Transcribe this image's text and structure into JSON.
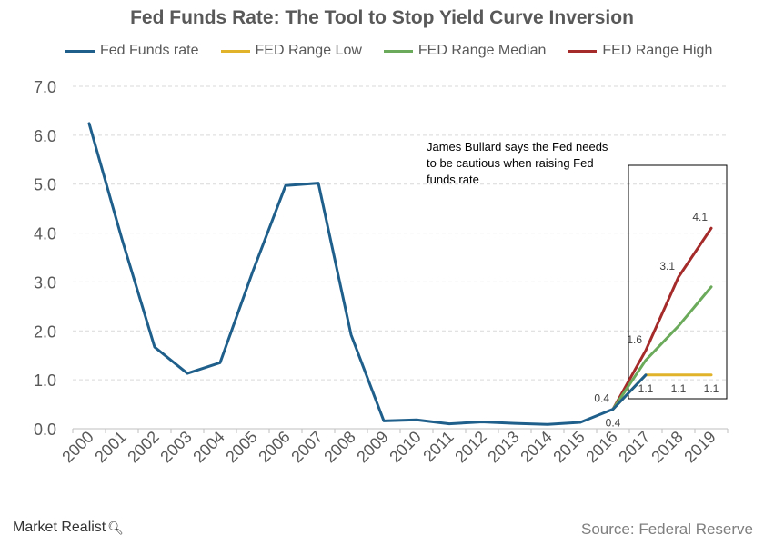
{
  "chart_data": {
    "type": "line",
    "title": "Fed Funds Rate: The Tool to Stop Yield Curve Inversion",
    "x": [
      "2000",
      "2001",
      "2002",
      "2003",
      "2004",
      "2005",
      "2006",
      "2007",
      "2008",
      "2009",
      "2010",
      "2011",
      "2012",
      "2013",
      "2014",
      "2015",
      "2016",
      "2017",
      "2018",
      "2019"
    ],
    "ylim": [
      0,
      7
    ],
    "yticks": [
      "0.0",
      "1.0",
      "2.0",
      "3.0",
      "4.0",
      "5.0",
      "6.0",
      "7.0"
    ],
    "grid": true,
    "legend_position": "top",
    "series": [
      {
        "name": "Fed Funds rate",
        "color": "#1f5f8b",
        "values": [
          6.24,
          3.88,
          1.67,
          1.13,
          1.35,
          3.22,
          4.97,
          5.02,
          1.92,
          0.16,
          0.18,
          0.1,
          0.14,
          0.11,
          0.09,
          0.13,
          0.4,
          1.1,
          null,
          null
        ]
      },
      {
        "name": "FED Range Low",
        "color": "#e0b32a",
        "values": [
          null,
          null,
          null,
          null,
          null,
          null,
          null,
          null,
          null,
          null,
          null,
          null,
          null,
          null,
          null,
          null,
          0.4,
          1.1,
          1.1,
          1.1
        ]
      },
      {
        "name": "FED Range Median",
        "color": "#6aaa5a",
        "values": [
          null,
          null,
          null,
          null,
          null,
          null,
          null,
          null,
          null,
          null,
          null,
          null,
          null,
          null,
          null,
          null,
          0.4,
          1.4,
          2.1,
          2.9
        ]
      },
      {
        "name": "FED Range High",
        "color": "#a52a2a",
        "values": [
          null,
          null,
          null,
          null,
          null,
          null,
          null,
          null,
          null,
          null,
          null,
          null,
          null,
          null,
          null,
          null,
          0.4,
          1.6,
          3.1,
          4.1
        ]
      }
    ],
    "data_labels": [
      {
        "text": "0.4",
        "year": "2016",
        "value": 0.4,
        "place": "upper-left"
      },
      {
        "text": "0.4",
        "year": "2016",
        "value": 0.4,
        "place": "below"
      },
      {
        "text": "1.6",
        "year": "2017",
        "value": 1.6,
        "place": "upper-left"
      },
      {
        "text": "3.1",
        "year": "2018",
        "value": 3.1,
        "place": "upper-left"
      },
      {
        "text": "4.1",
        "year": "2019",
        "value": 4.1,
        "place": "upper-left"
      },
      {
        "text": "1.1",
        "year": "2017",
        "value": 1.1,
        "place": "below"
      },
      {
        "text": "1.1",
        "year": "2018",
        "value": 1.1,
        "place": "below"
      },
      {
        "text": "1.1",
        "year": "2019",
        "value": 1.1,
        "place": "below"
      }
    ],
    "annotation": "James Bullard says the Fed needs to be cautious when raising Fed funds rate",
    "highlight_box": {
      "from_year": "2017",
      "to_year": "2019"
    }
  },
  "footer": {
    "brand": "Market Realist",
    "source": "Source: Federal Reserve"
  }
}
